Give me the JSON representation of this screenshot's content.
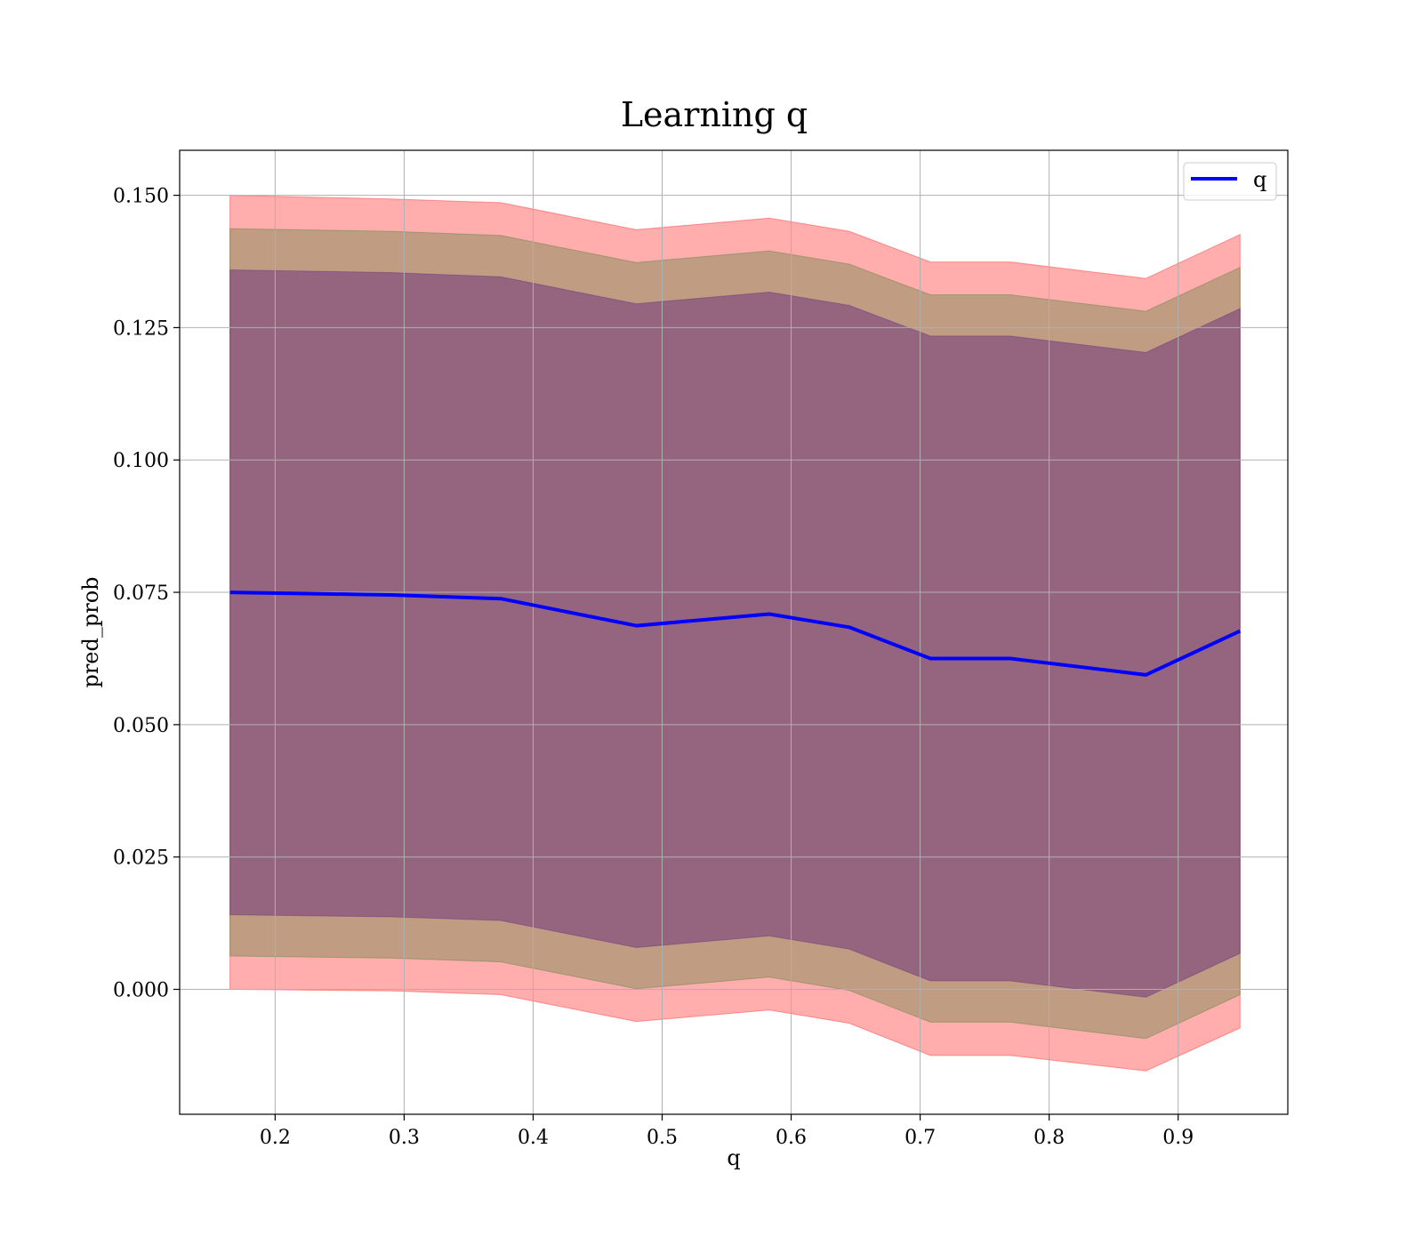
{
  "chart_data": {
    "type": "line",
    "title": "Learning q",
    "xlabel": "q",
    "ylabel": "pred_prob",
    "xlim": [
      0.126,
      0.985
    ],
    "ylim": [
      -0.0236,
      0.1585
    ],
    "grid": true,
    "legend_position": "top-right",
    "x_ticks": [
      "0.2",
      "0.3",
      "0.4",
      "0.5",
      "0.6",
      "0.7",
      "0.8",
      "0.9"
    ],
    "y_ticks": [
      "0.000",
      "0.025",
      "0.050",
      "0.075",
      "0.100",
      "0.125",
      "0.150"
    ],
    "x": [
      0.165,
      0.29,
      0.375,
      0.48,
      0.583,
      0.645,
      0.708,
      0.77,
      0.875,
      0.948
    ],
    "series": [
      {
        "name": "q",
        "color": "#0000ff",
        "values": [
          0.075,
          0.0745,
          0.0738,
          0.0687,
          0.0709,
          0.0684,
          0.0625,
          0.0625,
          0.0594,
          0.0677
        ]
      }
    ],
    "bands": [
      {
        "color": "#ff0000",
        "opacity": 0.32,
        "lower": [
          0.0,
          -0.0003,
          -0.001,
          -0.0061,
          -0.0039,
          -0.0064,
          -0.0125,
          -0.0125,
          -0.0154,
          -0.0073
        ],
        "upper": [
          0.15,
          0.1493,
          0.1486,
          0.1435,
          0.1457,
          0.1432,
          0.1374,
          0.1374,
          0.1343,
          0.1426
        ]
      },
      {
        "color": "#3a7a2a",
        "opacity": 0.32,
        "lower": [
          0.0063,
          0.0059,
          0.0052,
          0.0001,
          0.0023,
          -0.0002,
          -0.0062,
          -0.0062,
          -0.0093,
          -0.001
        ],
        "upper": [
          0.1437,
          0.1432,
          0.1424,
          0.1373,
          0.1395,
          0.137,
          0.1312,
          0.1312,
          0.1281,
          0.1364
        ]
      },
      {
        "color": "#5a1a7a",
        "opacity": 0.42,
        "lower": [
          0.0141,
          0.0137,
          0.013,
          0.0079,
          0.0101,
          0.0076,
          0.0016,
          0.0016,
          -0.0015,
          0.0068
        ],
        "upper": [
          0.1359,
          0.1354,
          0.1346,
          0.1295,
          0.1317,
          0.1292,
          0.1234,
          0.1234,
          0.1203,
          0.1286
        ]
      }
    ]
  }
}
